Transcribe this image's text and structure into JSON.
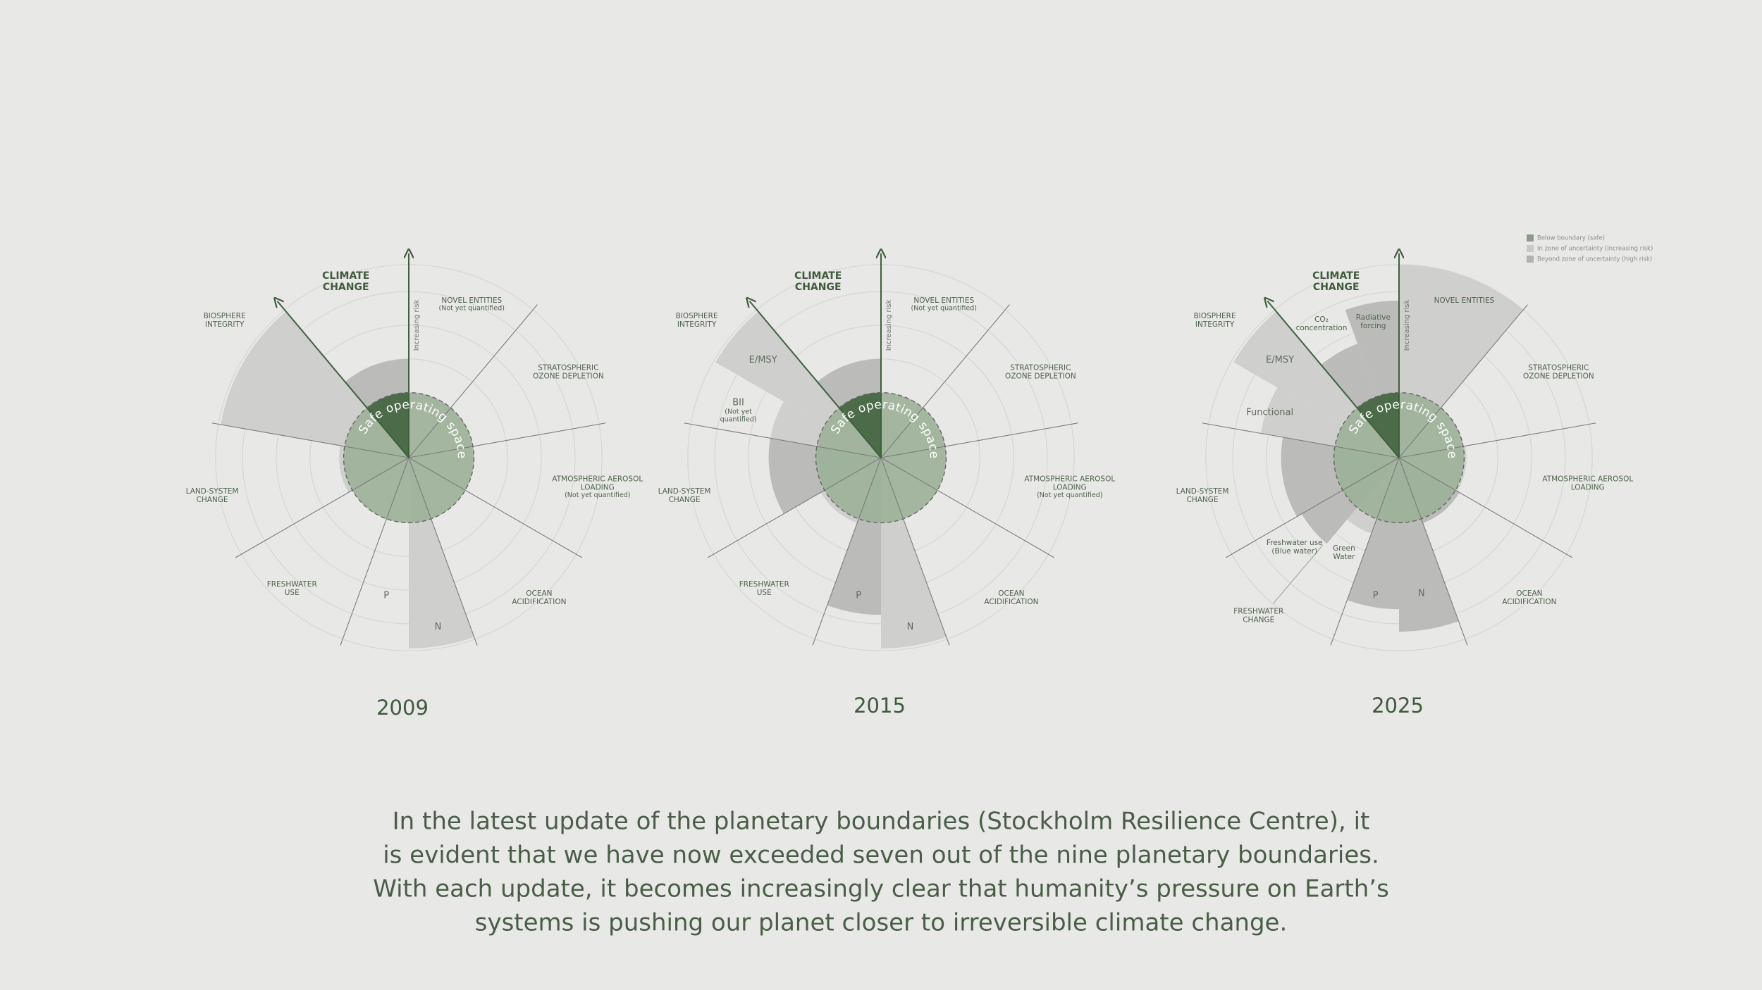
{
  "legend": [
    "Below boundary (safe)",
    "In zone of uncertainty (increasing risk)",
    "Beyond zone of uncertainty (high risk)"
  ],
  "diagrams": [
    {
      "year": "2009",
      "safe": "Safe operating space",
      "risk": "Increasing risk",
      "labels": [
        {
          "text": [
            "CLIMATE",
            "CHANGE"
          ]
        },
        {
          "text": [
            "NOVEL ENTITIES"
          ],
          "note": [
            "(Not yet quantified)"
          ]
        },
        {
          "text": [
            "STRATOSPHERIC",
            "OZONE DEPLETION"
          ]
        },
        {
          "text": [
            "ATMOSPHERIC AEROSOL",
            "LOADING"
          ],
          "note": [
            "(Not yet quantified)"
          ]
        },
        {
          "text": [
            "OCEAN",
            "ACIDIFICATION"
          ]
        },
        {
          "text": [
            "N"
          ]
        },
        {
          "text": [
            "P"
          ]
        },
        {
          "text": [
            "FRESHWATER",
            "USE"
          ]
        },
        {
          "text": [
            "LAND-SYSTEM",
            "CHANGE"
          ]
        },
        {
          "text": [
            "BIOSPHERE",
            "INTEGRITY"
          ]
        }
      ]
    },
    {
      "year": "2015",
      "safe": "Safe operating space",
      "risk": "Increasing risk",
      "labels": [
        {
          "text": [
            "CLIMATE",
            "CHANGE"
          ]
        },
        {
          "text": [
            "NOVEL ENTITIES"
          ],
          "note": [
            "(Not yet quantified)"
          ]
        },
        {
          "text": [
            "STRATOSPHERIC",
            "OZONE DEPLETION"
          ]
        },
        {
          "text": [
            "ATMOSPHERIC AEROSOL",
            "LOADING"
          ],
          "note": [
            "(Not yet quantified)"
          ]
        },
        {
          "text": [
            "OCEAN",
            "ACIDIFICATION"
          ]
        },
        {
          "text": [
            "N"
          ]
        },
        {
          "text": [
            "P"
          ]
        },
        {
          "text": [
            "FRESHWATER",
            "USE"
          ]
        },
        {
          "text": [
            "LAND-SYSTEM",
            "CHANGE"
          ]
        },
        {
          "text": [
            "BIOSPHERE",
            "INTEGRITY"
          ]
        },
        {
          "text": [
            "E/MSY"
          ]
        },
        {
          "text": [
            "BII"
          ],
          "note": [
            "(Not yet",
            "quantified)"
          ]
        }
      ]
    },
    {
      "year": "2025",
      "safe": "Safe operating space",
      "risk": "Increasing risk",
      "labels": [
        {
          "text": [
            "CLIMATE",
            "CHANGE"
          ]
        },
        {
          "text": [
            "NOVEL ENTITIES"
          ]
        },
        {
          "text": [
            "STRATOSPHERIC",
            "OZONE DEPLETION"
          ]
        },
        {
          "text": [
            "ATMOSPHERIC AEROSOL",
            "LOADING"
          ]
        },
        {
          "text": [
            "OCEAN",
            "ACIDIFICATION"
          ]
        },
        {
          "text": [
            "N"
          ]
        },
        {
          "text": [
            "P"
          ]
        },
        {
          "text": [
            "FRESHWATER",
            "CHANGE"
          ]
        },
        {
          "text": [
            "LAND-SYSTEM",
            "CHANGE"
          ]
        },
        {
          "text": [
            "BIOSPHERE",
            "INTEGRITY"
          ]
        },
        {
          "text": [
            "E/MSY"
          ]
        },
        {
          "text": [
            "Functional"
          ]
        },
        {
          "text": [
            "CO₂",
            "concentration"
          ]
        },
        {
          "text": [
            "Radiative",
            "forcing"
          ]
        },
        {
          "text": [
            "Freshwater use",
            "(Blue water)"
          ]
        },
        {
          "text": [
            "Green",
            "Water"
          ]
        }
      ]
    }
  ],
  "caption": [
    "In the latest update of the planetary boundaries (Stockholm Resilience Centre), it",
    "is evident that we have now exceeded seven out of the nine planetary boundaries.",
    "With each update, it becomes increasingly clear that humanity’s pressure on Earth’s",
    "systems is pushing our planet closer to irreversible climate change."
  ]
}
